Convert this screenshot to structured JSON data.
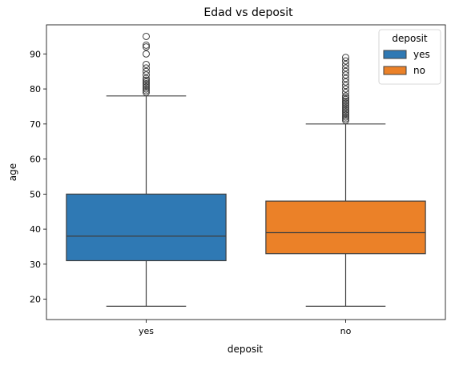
{
  "chart_data": {
    "type": "box",
    "title": "Edad vs deposit",
    "xlabel": "deposit",
    "ylabel": "age",
    "categories": [
      "yes",
      "no"
    ],
    "ylim": [
      14.2,
      98.3
    ],
    "yticks": [
      20,
      30,
      40,
      50,
      60,
      70,
      80,
      90
    ],
    "legend": {
      "title": "deposit",
      "placement": "top-right",
      "entries": [
        {
          "label": "yes",
          "color": "#2f79b4"
        },
        {
          "label": "no",
          "color": "#eb8128"
        }
      ]
    },
    "series": [
      {
        "name": "yes",
        "color": "#2f79b4",
        "whisker_low": 18,
        "q1": 31,
        "median": 38,
        "q3": 50,
        "whisker_high": 78,
        "outliers": [
          79,
          79.5,
          80,
          80.5,
          81,
          81.5,
          82,
          82.5,
          83,
          84,
          85,
          86,
          87,
          90,
          92,
          92.5,
          95
        ]
      },
      {
        "name": "no",
        "color": "#eb8128",
        "whisker_low": 18,
        "q1": 33,
        "median": 39,
        "q3": 48,
        "whisker_high": 70,
        "outliers": [
          71,
          71.5,
          72,
          72.5,
          73,
          73.5,
          74,
          74.5,
          75,
          75.5,
          76,
          76.5,
          77,
          77.5,
          78,
          79,
          80,
          81,
          82,
          83,
          84,
          85,
          86,
          87,
          88,
          89
        ]
      }
    ]
  }
}
